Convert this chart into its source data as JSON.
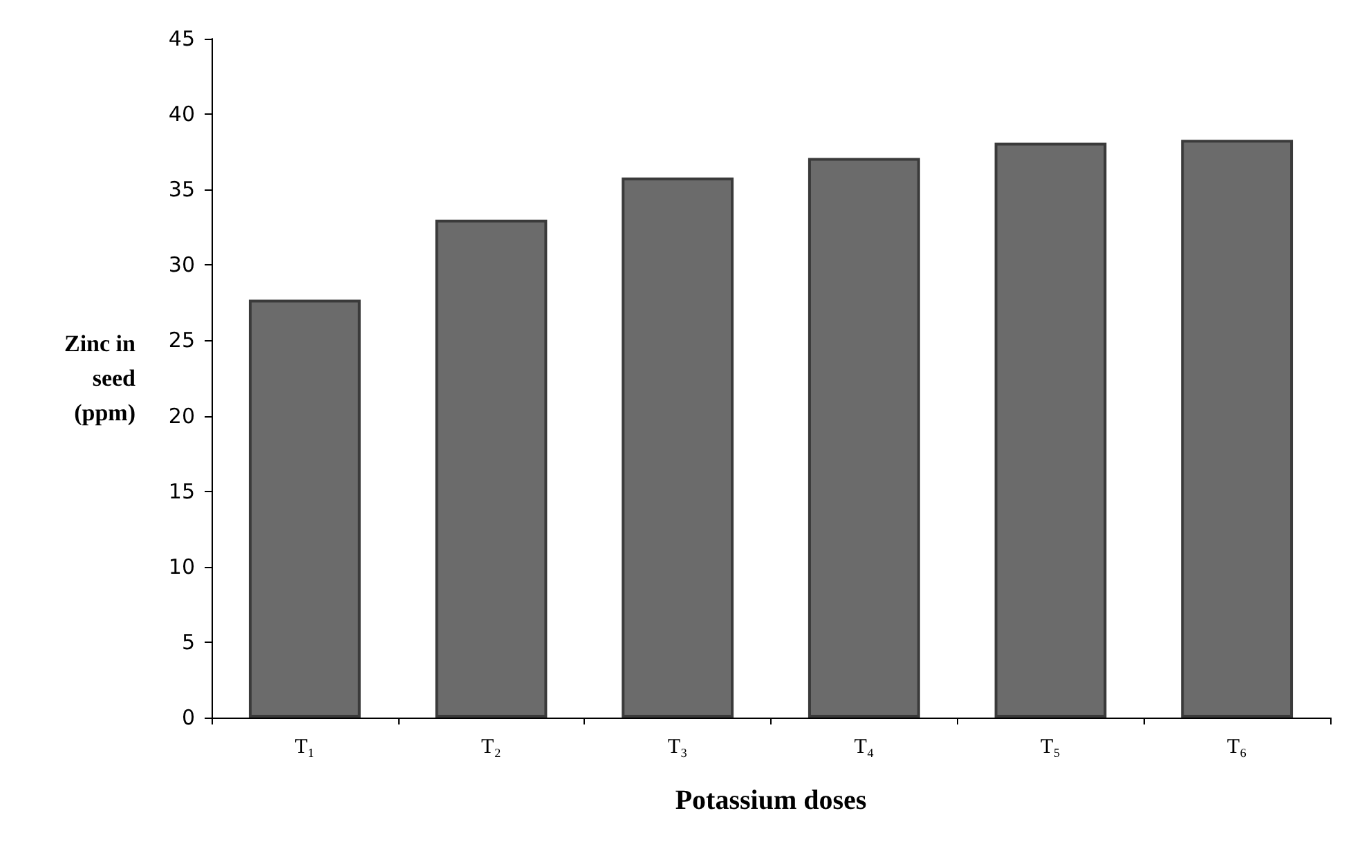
{
  "chart_data": {
    "type": "bar",
    "xlabel": "Potassium doses",
    "ylabel": "Zinc in\nseed\n(ppm)",
    "categories": [
      "T₁",
      "T₂",
      "T₃",
      "T₄",
      "T₅",
      "T₆"
    ],
    "values": [
      27.7,
      33.0,
      35.8,
      37.1,
      38.1,
      38.3
    ],
    "color": "#6b6b6b",
    "ylim": [
      0,
      45
    ],
    "yticks": [
      0,
      5,
      10,
      15,
      20,
      25,
      30,
      35,
      40,
      45
    ],
    "grid": false
  }
}
